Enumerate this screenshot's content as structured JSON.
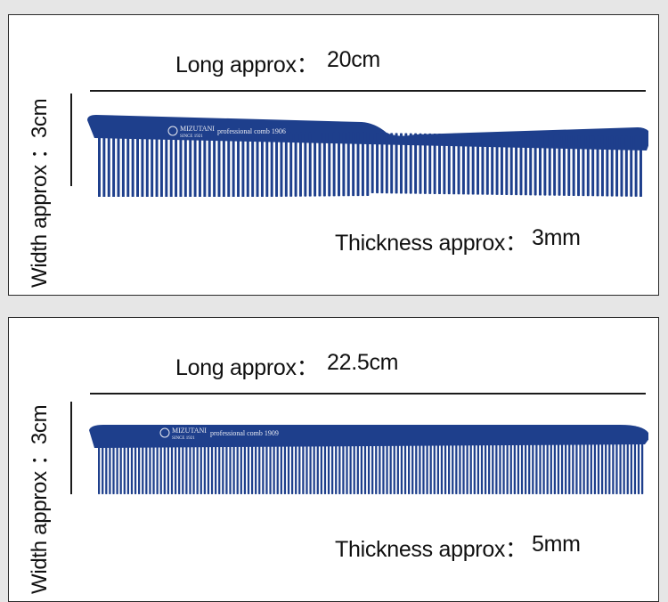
{
  "panels": [
    {
      "long_label": "Long approx：",
      "long_value": "20cm",
      "thickness_label": "Thickness approx：",
      "thickness_value": "3mm",
      "width_label": "Width approx ：3cm",
      "comb_brand": "MIZUTANI",
      "comb_since": "SINCE 1921",
      "comb_model": "professional comb 1906"
    },
    {
      "long_label": "Long approx：",
      "long_value": "22.5cm",
      "thickness_label": "Thickness approx：",
      "thickness_value": "5mm",
      "width_label": "Width approx ：3cm",
      "comb_brand": "MIZUTANI",
      "comb_since": "SINCE 1921",
      "comb_model": "professional comb 1909"
    }
  ],
  "colors": {
    "comb": "#1e3f8c",
    "comb_dark": "#152e6a",
    "background": "#e6e6e6",
    "panel": "#ffffff"
  }
}
